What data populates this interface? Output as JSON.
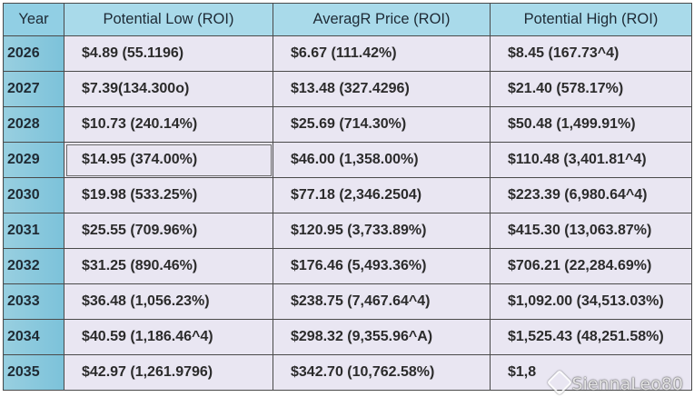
{
  "table": {
    "headers": [
      "Year",
      "Potential Low (ROI)",
      "AveragR Price (ROI)",
      "Potential High (ROI)"
    ],
    "rows": [
      {
        "year": "2026",
        "low": "$4.89 (55.1196)",
        "avg": "$6.67 (111.42%)",
        "high": "$8.45 (167.73^4)"
      },
      {
        "year": "2027",
        "low": "$7.39(134.300o)",
        "avg": "$13.48 (327.4296)",
        "high": "$21.40 (578.17%)"
      },
      {
        "year": "2028",
        "low": "$10.73 (240.14%)",
        "avg": "$25.69 (714.30%)",
        "high": "$50.48 (1,499.91%)"
      },
      {
        "year": "2029",
        "low": "$14.95 (374.00%)",
        "avg": "$46.00 (1,358.00%)",
        "high": "$110.48 (3,401.81^4)"
      },
      {
        "year": "2030",
        "low": "$19.98 (533.25%)",
        "avg": "$77.18 (2,346.2504)",
        "high": "$223.39 (6,980.64^4)"
      },
      {
        "year": "2031",
        "low": "$25.55 (709.96%)",
        "avg": "$120.95 (3,733.89%)",
        "high": "$415.30 (13,063.87%)"
      },
      {
        "year": "2032",
        "low": "$31.25 (890.46%)",
        "avg": "$176.46 (5,493.36%)",
        "high": "$706.21 (22,284.69%)"
      },
      {
        "year": "2033",
        "low": "$36.48 (1,056.23%)",
        "avg": "$238.75 (7,467.64^4)",
        "high": "$1,092.00 (34,513.03%)"
      },
      {
        "year": "2034",
        "low": "$40.59 (1,186.46^4)",
        "avg": "$298.32 (9,355.96^A)",
        "high": "$1,525.43 (48,251.58%)"
      },
      {
        "year": "2035",
        "low": "$42.97 (1,261.9796)",
        "avg": "$342.70 (10,762.58%)",
        "high": "$1,8"
      }
    ]
  },
  "watermark": {
    "text": "SiennaLeo80",
    "icon": "watermark-logo-icon"
  },
  "colors": {
    "header_bg": "#a9daea",
    "year_col_bg": "#7cc2da",
    "cell_bg": "#e9e6f2",
    "border": "#4a4a4a"
  }
}
